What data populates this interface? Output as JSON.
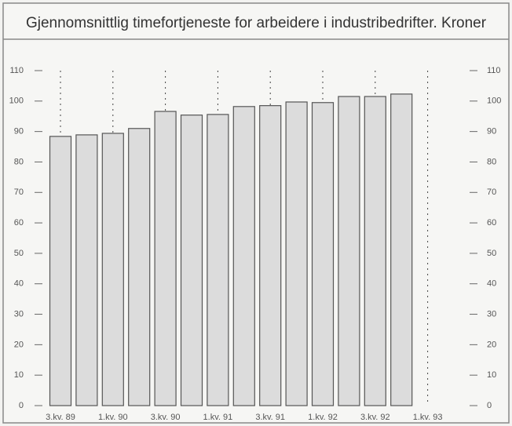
{
  "chart_data": {
    "type": "bar",
    "title": "Gjennomsnittlig timefortjeneste for arbeidere i industribedrifter. Kroner",
    "categories": [
      "3.kv. 89",
      null,
      "1.kv. 90",
      null,
      "3.kv. 90",
      null,
      "1.kv. 91",
      null,
      "3.kv. 91",
      null,
      "1.kv. 92",
      null,
      "3.kv. 92",
      null,
      "1.kv. 93"
    ],
    "values": [
      88.4,
      88.9,
      89.4,
      91.0,
      96.6,
      95.4,
      95.6,
      98.2,
      98.5,
      99.7,
      99.5,
      101.5,
      101.5,
      102.3,
      null
    ],
    "color": "#dcdcdc",
    "ylim": [
      0,
      110
    ],
    "yticks": [
      0,
      10,
      20,
      30,
      40,
      50,
      60,
      70,
      80,
      90,
      100,
      110
    ]
  }
}
